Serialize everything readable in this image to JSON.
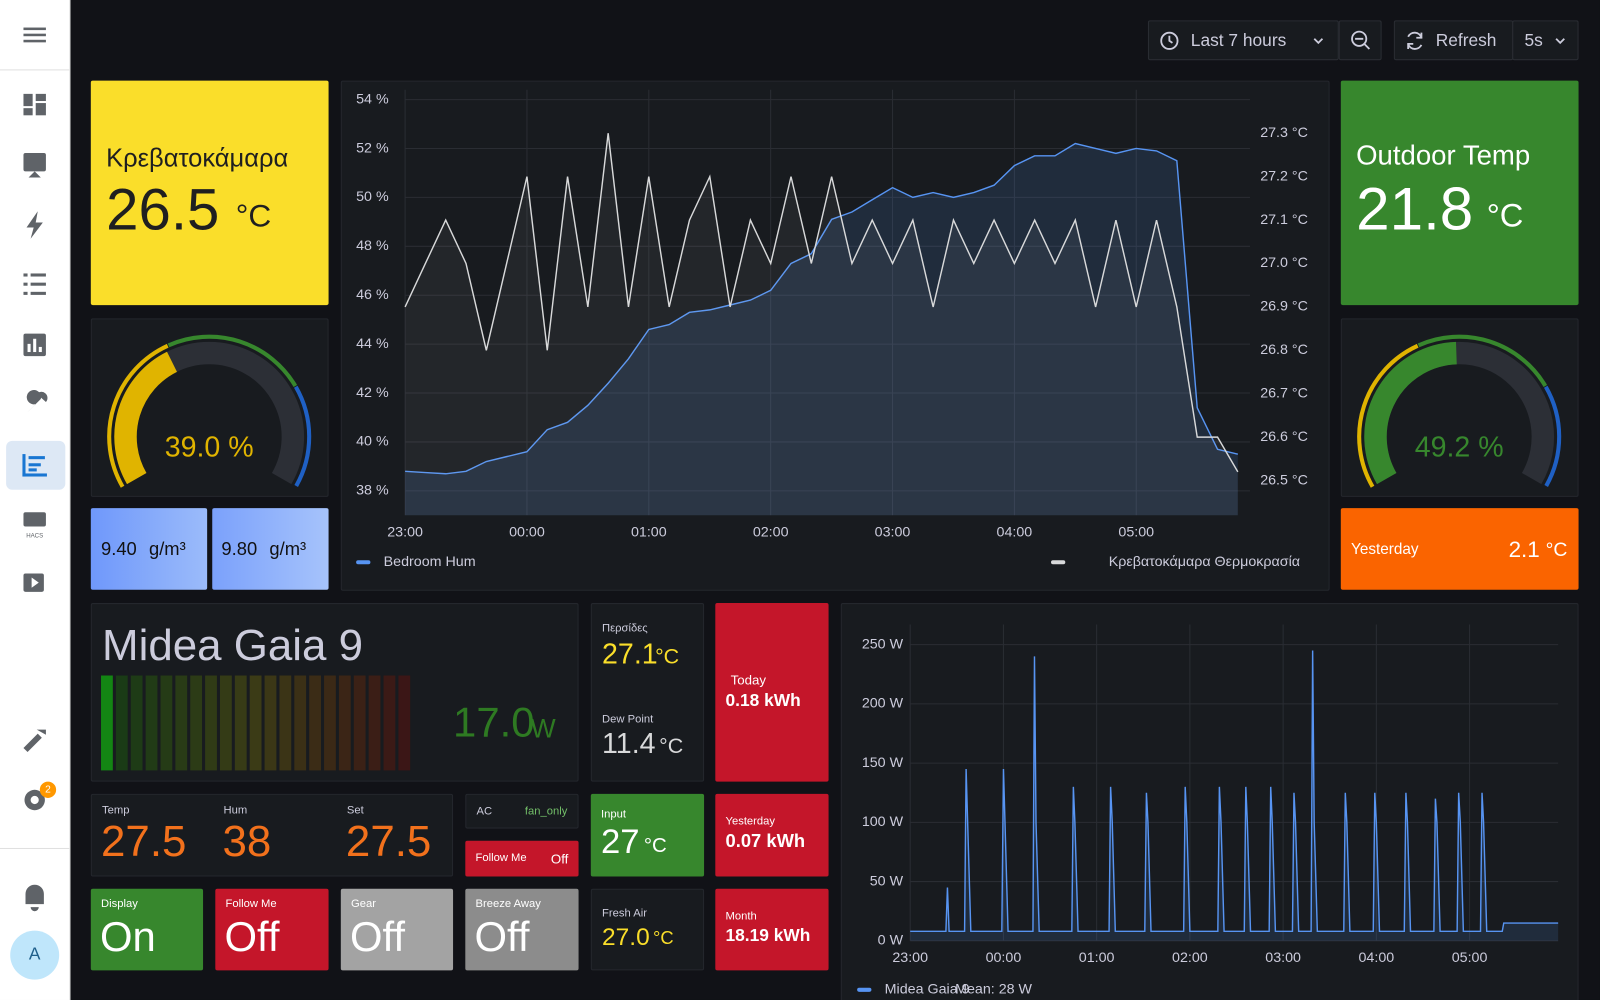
{
  "toolbar": {
    "time_range": "Last 7 hours",
    "refresh": "Refresh",
    "interval": "5s"
  },
  "sidebar": {
    "hacs_label": "HACS",
    "notification_badge": "2",
    "avatar": "A"
  },
  "panels": {
    "bedroom_temp": {
      "title": "Κρεβατοκάμαρα",
      "value": "26.5",
      "unit": "°C"
    },
    "outdoor_temp": {
      "title": "Outdoor Temp",
      "value": "21.8",
      "unit": "°C"
    },
    "bedroom_humidity_gauge": {
      "type": "gauge",
      "value": 39.0,
      "value_label": "39.0 %",
      "min": 0,
      "max": 100,
      "thresholds": [
        [
          0,
          "#e0b400"
        ],
        [
          40,
          "#37872d"
        ],
        [
          75,
          "#1f60c4"
        ]
      ]
    },
    "outdoor_humidity_gauge": {
      "type": "gauge",
      "value": 49.2,
      "value_label": "49.2 %",
      "min": 0,
      "max": 100,
      "thresholds": [
        [
          0,
          "#e0b400"
        ],
        [
          40,
          "#37872d"
        ],
        [
          75,
          "#1f60c4"
        ]
      ]
    },
    "absolute_humidity": [
      {
        "value": "9.40",
        "unit": "g/m³"
      },
      {
        "value": "9.80",
        "unit": "g/m³"
      }
    ],
    "outdoor_yesterday": {
      "title": "Yesterday",
      "value": "2.1",
      "unit": "°C"
    },
    "midea": {
      "type": "bar_gauge",
      "title": "Midea Gaia 9",
      "value": 17.0,
      "value_label": "17.0",
      "unit": "W",
      "min": 0,
      "max": 400,
      "segments": 21
    },
    "persides": {
      "title": "Περσίδες",
      "value": "27.1",
      "unit": "°C"
    },
    "dew_point": {
      "title": "Dew Point",
      "value": "11.4",
      "unit": "°C"
    },
    "energy_today": {
      "title": "Today",
      "value": "0.18 kWh"
    },
    "climate": [
      {
        "title": "Temp",
        "value": "27.5"
      },
      {
        "title": "Hum",
        "value": "38"
      },
      {
        "title": "Set",
        "value": "27.5"
      }
    ],
    "ac_mode": {
      "title": "AC",
      "value": "fan_only"
    },
    "follow_me_small": {
      "title": "Follow Me",
      "value": "Off"
    },
    "input_temp": {
      "title": "Input",
      "value": "27",
      "unit": "°C"
    },
    "energy_yesterday": {
      "title": "Yesterday",
      "value": "0.07 kWh"
    },
    "display": {
      "title": "Display",
      "value": "On"
    },
    "follow_me": {
      "title": "Follow Me",
      "value": "Off"
    },
    "gear": {
      "title": "Gear",
      "value": "Off"
    },
    "breeze_away": {
      "title": "Breeze Away",
      "value": "Off"
    },
    "fresh_air": {
      "title": "Fresh Air",
      "value": "27.0",
      "unit": "°C"
    },
    "energy_month": {
      "title": "Month",
      "value": "18.19 kWh"
    }
  },
  "charts": [
    {
      "type": "line",
      "x": [
        "23:00",
        "23:10",
        "23:20",
        "23:30",
        "23:40",
        "23:50",
        "00:00",
        "00:10",
        "00:20",
        "00:30",
        "00:40",
        "00:50",
        "01:00",
        "01:10",
        "01:20",
        "01:30",
        "01:40",
        "01:50",
        "02:00",
        "02:10",
        "02:20",
        "02:30",
        "02:40",
        "02:50",
        "03:00",
        "03:10",
        "03:20",
        "03:30",
        "03:40",
        "03:50",
        "04:00",
        "04:10",
        "04:20",
        "04:30",
        "04:40",
        "04:50",
        "05:00",
        "05:10",
        "05:20",
        "05:30",
        "05:40",
        "05:50"
      ],
      "series": [
        {
          "name": "Bedroom Hum",
          "color": "#5794f2",
          "values": [
            38.8,
            38.75,
            38.7,
            38.8,
            39.2,
            39.4,
            39.6,
            40.5,
            40.8,
            41.5,
            42.4,
            43.4,
            44.6,
            44.8,
            45.3,
            45.4,
            45.6,
            45.8,
            46.2,
            47.3,
            47.7,
            49.1,
            49.4,
            49.9,
            50.4,
            50.0,
            50.2,
            50.0,
            50.2,
            50.5,
            51.3,
            51.7,
            51.7,
            52.2,
            52.0,
            51.8,
            52.0,
            51.9,
            51.5,
            41.4,
            39.7,
            39.5
          ]
        },
        {
          "name": "Κρεβατοκάμαρα Θερμοκρασία",
          "color": "#d8d9da",
          "axis": "y2",
          "values": [
            26.9,
            27.0,
            27.1,
            27.0,
            26.8,
            27.0,
            27.2,
            26.8,
            27.2,
            26.9,
            27.3,
            26.9,
            27.2,
            26.9,
            27.1,
            27.2,
            26.9,
            27.1,
            27.0,
            27.2,
            27.0,
            27.2,
            27.0,
            27.1,
            27.0,
            27.1,
            26.9,
            27.1,
            27.0,
            27.1,
            27.0,
            27.1,
            27.0,
            27.1,
            26.9,
            27.1,
            26.9,
            27.1,
            26.9,
            26.6,
            26.6,
            26.52
          ]
        }
      ],
      "xlim": [
        "23:00",
        "05:56"
      ],
      "xticks": [
        "23:00",
        "00:00",
        "01:00",
        "02:00",
        "03:00",
        "04:00",
        "05:00"
      ],
      "ylim": [
        37,
        54.4
      ],
      "yticks": [
        {
          "value": 38,
          "label": "38 %"
        },
        {
          "value": 40,
          "label": "40 %"
        },
        {
          "value": 42,
          "label": "42 %"
        },
        {
          "value": 44,
          "label": "44 %"
        },
        {
          "value": 46,
          "label": "46 %"
        },
        {
          "value": 48,
          "label": "48 %"
        },
        {
          "value": 50,
          "label": "50 %"
        },
        {
          "value": 52,
          "label": "52 %"
        },
        {
          "value": 54,
          "label": "54 %"
        }
      ],
      "y2lim": [
        26.42,
        27.4
      ],
      "y2ticks": [
        {
          "value": 26.5,
          "label": "26.5 °C"
        },
        {
          "value": 26.6,
          "label": "26.6 °C"
        },
        {
          "value": 26.7,
          "label": "26.7 °C"
        },
        {
          "value": 26.8,
          "label": "26.8 °C"
        },
        {
          "value": 26.9,
          "label": "26.9 °C"
        },
        {
          "value": 27.0,
          "label": "27.0 °C"
        },
        {
          "value": 27.1,
          "label": "27.1 °C"
        },
        {
          "value": 27.2,
          "label": "27.2 °C"
        },
        {
          "value": 27.3,
          "label": "27.3 °C"
        }
      ],
      "grid": true
    },
    {
      "type": "line",
      "x": [
        "23:00",
        "23:23",
        "23:24",
        "23:25",
        "23:35",
        "23:36",
        "23:37",
        "23:39",
        "23:59",
        "00:00",
        "00:01",
        "00:03",
        "00:19",
        "00:20",
        "00:21",
        "00:23",
        "00:44",
        "00:45",
        "00:46",
        "00:48",
        "01:08",
        "01:09",
        "01:10",
        "01:12",
        "01:31",
        "01:32",
        "01:33",
        "01:35",
        "01:56",
        "01:57",
        "01:58",
        "02:00",
        "02:18",
        "02:19",
        "02:20",
        "02:22",
        "02:35",
        "02:36",
        "02:37",
        "02:39",
        "02:51",
        "02:52",
        "02:53",
        "02:55",
        "03:06",
        "03:07",
        "03:08",
        "03:10",
        "03:18",
        "03:19",
        "03:20",
        "03:22",
        "03:39",
        "03:40",
        "03:41",
        "03:43",
        "03:58",
        "03:59",
        "04:00",
        "04:02",
        "04:18",
        "04:19",
        "04:20",
        "04:22",
        "04:37",
        "04:38",
        "04:39",
        "04:41",
        "04:52",
        "04:53",
        "04:54",
        "04:56",
        "05:07",
        "05:08",
        "05:09",
        "05:11",
        "05:21",
        "05:22",
        "05:57"
      ],
      "series": [
        {
          "name": "Midea Gaia 9",
          "color": "#5794f2",
          "values": [
            8,
            8,
            45,
            8,
            8,
            145,
            100,
            8,
            8,
            145,
            100,
            8,
            8,
            240,
            100,
            8,
            8,
            130,
            100,
            8,
            8,
            130,
            100,
            8,
            8,
            125,
            100,
            8,
            8,
            130,
            100,
            8,
            8,
            130,
            100,
            8,
            8,
            130,
            100,
            8,
            8,
            130,
            100,
            8,
            8,
            125,
            100,
            8,
            8,
            245,
            100,
            8,
            8,
            125,
            100,
            8,
            8,
            125,
            100,
            8,
            8,
            125,
            100,
            8,
            8,
            120,
            100,
            8,
            8,
            125,
            100,
            8,
            8,
            125,
            100,
            8,
            8,
            15,
            15
          ]
        }
      ],
      "legend_stat": "Mean: 28 W",
      "xlim": [
        "23:00",
        "05:57"
      ],
      "xticks": [
        "23:00",
        "00:00",
        "01:00",
        "02:00",
        "03:00",
        "04:00",
        "05:00"
      ],
      "ylim": [
        0,
        267
      ],
      "yticks": [
        {
          "value": 0,
          "label": "0 W"
        },
        {
          "value": 50,
          "label": "50 W"
        },
        {
          "value": 100,
          "label": "100 W"
        },
        {
          "value": 150,
          "label": "150 W"
        },
        {
          "value": 200,
          "label": "200 W"
        },
        {
          "value": 250,
          "label": "250 W"
        }
      ],
      "grid": true
    }
  ]
}
